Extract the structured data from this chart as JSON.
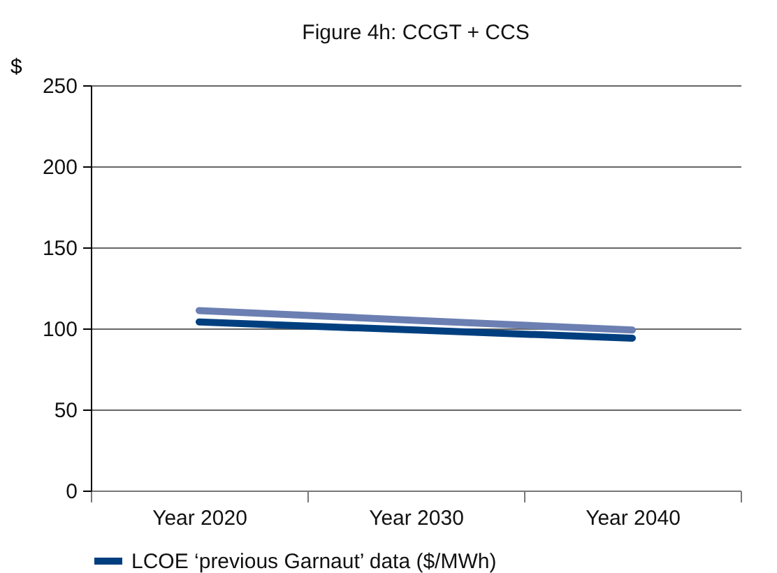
{
  "chart_data": {
    "type": "line",
    "title": "Figure 4h:  CCGT + CCS",
    "ylabel": "$",
    "categories": [
      "Year 2020",
      "Year 2030",
      "Year 2040"
    ],
    "series": [
      {
        "color": "#6b7fb2",
        "values": [
          111,
          105,
          99
        ]
      },
      {
        "name": "LCOE ‘previous Garnaut’ data ($/MWh)",
        "color": "#003f7f",
        "values": [
          104,
          99,
          94
        ]
      }
    ],
    "ylim": [
      0,
      250
    ],
    "yticks": [
      0,
      50,
      100,
      150,
      200,
      250
    ],
    "grid": "y",
    "legend": "bottom left"
  }
}
